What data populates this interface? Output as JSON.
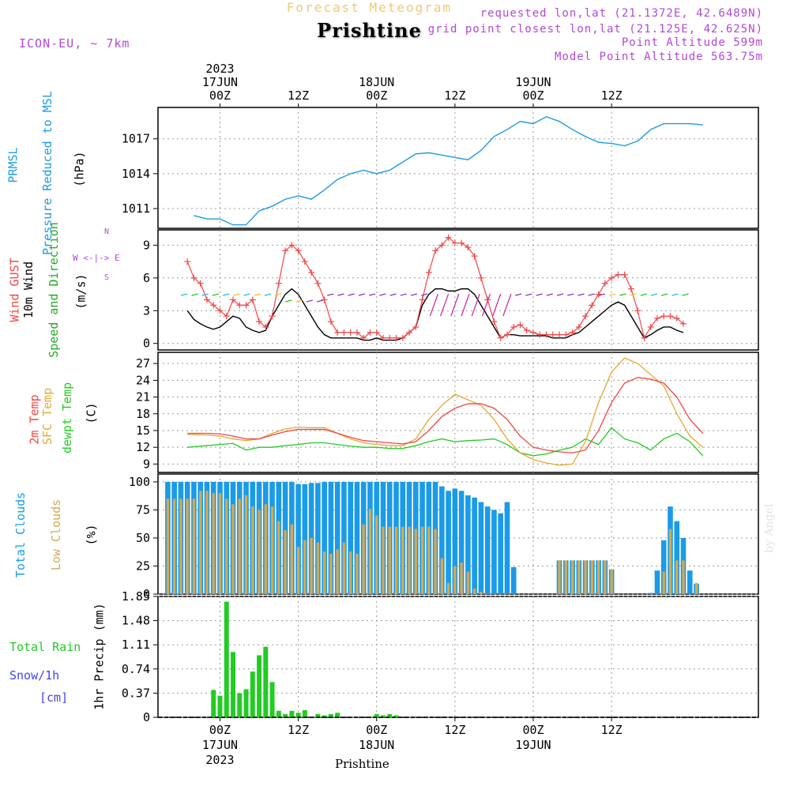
{
  "header": {
    "subtitle": "Forecast Meteogram",
    "location": "Prishtine",
    "model": "ICON-EU, ~ 7km",
    "requested": "requested lon,lat (21.1372E, 42.6489N)",
    "grid_point": "grid point closest lon,lat (21.125E, 42.625N)",
    "point_altitude": "Point Altitude 599m",
    "model_altitude": "Model Point Altitude 563.75m"
  },
  "footer": {
    "location": "Prishtine"
  },
  "watermark": "by Angel",
  "colors": {
    "pressure": "#1e9be0",
    "gust": "#f04646",
    "wind": "#000000",
    "temp": "#f04646",
    "sfc": "#e6a832",
    "dewpt": "#22cc22",
    "total_clouds": "#1a9be8",
    "low_clouds": "#d8a850",
    "rain": "#22cc22",
    "snow": "#4444ee",
    "purple": "#b347d9"
  },
  "axis_labels": {
    "top_year": "2023",
    "top_days": [
      "17JUN",
      "18JUN",
      "19JUN"
    ],
    "top_hours": [
      "00Z",
      "12Z",
      "00Z",
      "12Z",
      "00Z",
      "12Z"
    ],
    "bottom_hours": [
      "00Z",
      "12Z",
      "00Z",
      "12Z",
      "00Z",
      "12Z"
    ],
    "bottom_days": [
      "17JUN",
      "18JUN",
      "19JUN"
    ],
    "bottom_year": "2023"
  },
  "panel_labels": {
    "pressure": [
      "PRMSL",
      "Pressure Reduced to MSL",
      "(hPa)"
    ],
    "wind": [
      "Wind GUST",
      "10m Wind",
      "Speed and Direction",
      "(m/s)"
    ],
    "compass": [
      "N",
      "W <-|-> E",
      "S"
    ],
    "temp": [
      "2m Temp",
      "SFC Temp",
      "dewpt Temp",
      "(C)"
    ],
    "clouds": [
      "Total Clouds",
      "Low Clouds",
      "(%)"
    ],
    "precip": [
      "Total Rain",
      "Snow/1h",
      "[cm]",
      "1hr Precip (mm)"
    ]
  },
  "chart_data": [
    {
      "type": "line",
      "title": "PRMSL Pressure Reduced to MSL",
      "ylabel": "(hPa)",
      "ylim": [
        1009.3,
        1019.7
      ],
      "yticks": [
        "1011",
        "1014",
        "1017"
      ],
      "x_hours": [
        -4,
        -2,
        0,
        2,
        4,
        6,
        8,
        10,
        12,
        14,
        16,
        18,
        20,
        22,
        24,
        26,
        28,
        30,
        32,
        34,
        36,
        38,
        40,
        42,
        44,
        46,
        48,
        50,
        52,
        54,
        56,
        58,
        60,
        62,
        64,
        66,
        68,
        70,
        72,
        74
      ],
      "series": [
        {
          "name": "PRMSL",
          "values": [
            1010.4,
            1010.1,
            1010.1,
            1009.6,
            1009.6,
            1010.8,
            1011.2,
            1011.8,
            1012.1,
            1011.8,
            1012.6,
            1013.5,
            1014.0,
            1014.3,
            1014.0,
            1014.3,
            1015.0,
            1015.7,
            1015.8,
            1015.6,
            1015.4,
            1015.2,
            1016.0,
            1017.2,
            1017.8,
            1018.5,
            1018.3,
            1018.9,
            1018.5,
            1017.8,
            1017.2,
            1016.7,
            1016.6,
            1016.4,
            1016.8,
            1017.8,
            1018.3,
            1018.3,
            1018.3,
            1018.2
          ]
        }
      ]
    },
    {
      "type": "line",
      "title": "Wind GUST / 10m Wind Speed and Direction",
      "ylabel": "(m/s)",
      "ylim": [
        -0.6,
        10.4
      ],
      "yticks": [
        "0",
        "3",
        "6",
        "9"
      ],
      "x_hours": [
        -5,
        -4,
        -3,
        -2,
        -1,
        0,
        1,
        2,
        3,
        4,
        5,
        6,
        7,
        8,
        9,
        10,
        11,
        12,
        13,
        14,
        15,
        16,
        17,
        18,
        19,
        20,
        21,
        22,
        23,
        24,
        25,
        26,
        27,
        28,
        29,
        30,
        31,
        32,
        33,
        34,
        35,
        36,
        37,
        38,
        39,
        40,
        41,
        42,
        43,
        44,
        45,
        46,
        47,
        48,
        49,
        50,
        51,
        52,
        53,
        54,
        55,
        56,
        57,
        58,
        59,
        60,
        61,
        62,
        63,
        64,
        65,
        66,
        67,
        68,
        69,
        70,
        71
      ],
      "series": [
        {
          "name": "Wind GUST",
          "values": [
            7.5,
            6.0,
            5.5,
            4.0,
            3.5,
            3.0,
            2.5,
            4.0,
            3.5,
            3.5,
            4.0,
            2.0,
            1.5,
            2.5,
            5.5,
            8.5,
            9.0,
            8.5,
            7.5,
            6.5,
            5.5,
            4.0,
            2.0,
            1.0,
            1.0,
            1.0,
            1.0,
            0.5,
            1.0,
            1.0,
            0.5,
            0.5,
            0.5,
            0.5,
            1.0,
            1.5,
            4.0,
            6.5,
            8.5,
            9.0,
            9.7,
            9.2,
            9.2,
            8.8,
            8.0,
            6.0,
            4.0,
            2.0,
            0.5,
            0.8,
            1.5,
            1.7,
            1.2,
            1.0,
            0.8,
            0.8,
            0.8,
            0.8,
            0.8,
            1.0,
            1.5,
            2.5,
            3.5,
            4.5,
            5.5,
            6.0,
            6.3,
            6.3,
            5.0,
            3.0,
            0.5,
            1.5,
            2.3,
            2.5,
            2.5,
            2.3,
            1.8
          ]
        },
        {
          "name": "10m Wind",
          "values": [
            3.0,
            2.2,
            1.8,
            1.5,
            1.3,
            1.5,
            2.0,
            2.5,
            2.3,
            1.5,
            1.2,
            1.0,
            1.2,
            2.5,
            3.5,
            4.5,
            5.0,
            4.5,
            3.5,
            2.5,
            1.5,
            0.8,
            0.5,
            0.5,
            0.5,
            0.5,
            0.5,
            0.3,
            0.3,
            0.5,
            0.3,
            0.3,
            0.3,
            0.5,
            1.0,
            1.5,
            3.5,
            4.5,
            5.0,
            5.0,
            4.8,
            4.8,
            5.0,
            5.0,
            4.5,
            3.5,
            2.5,
            1.5,
            0.5,
            0.8,
            0.8,
            0.7,
            0.7,
            0.7,
            0.7,
            0.7,
            0.5,
            0.5,
            0.5,
            0.8,
            1.0,
            1.5,
            2.0,
            2.5,
            3.0,
            3.5,
            3.8,
            3.5,
            2.5,
            1.5,
            0.5,
            0.8,
            1.2,
            1.5,
            1.5,
            1.2,
            1.0
          ]
        }
      ]
    },
    {
      "type": "line",
      "title": "2m Temp / SFC Temp / dewpt Temp",
      "ylabel": "(C)",
      "ylim": [
        7.5,
        29
      ],
      "yticks": [
        "9",
        "12",
        "15",
        "18",
        "21",
        "24",
        "27"
      ],
      "x_hours": [
        -5,
        -2,
        0,
        2,
        4,
        6,
        8,
        10,
        12,
        14,
        16,
        18,
        20,
        22,
        24,
        26,
        28,
        30,
        32,
        34,
        36,
        38,
        40,
        42,
        44,
        46,
        48,
        50,
        52,
        54,
        56,
        58,
        60,
        62,
        64,
        66,
        68,
        70,
        72,
        74
      ],
      "series": [
        {
          "name": "2m Temp",
          "values": [
            14.5,
            14.5,
            14.4,
            14.0,
            13.5,
            13.5,
            14.2,
            14.8,
            15.2,
            15.2,
            15.2,
            14.5,
            13.8,
            13.2,
            13.0,
            12.8,
            12.6,
            13.0,
            15.0,
            17.5,
            19.0,
            19.8,
            19.8,
            19.0,
            17.0,
            14.0,
            12.0,
            11.5,
            11.2,
            11.0,
            11.5,
            15.0,
            20.0,
            23.5,
            24.5,
            24.2,
            23.5,
            21.0,
            17.0,
            14.5
          ]
        },
        {
          "name": "SFC Temp",
          "values": [
            14.3,
            14.2,
            14.0,
            13.5,
            13.2,
            13.5,
            14.5,
            15.3,
            15.6,
            15.5,
            15.5,
            14.5,
            13.5,
            12.8,
            12.5,
            12.3,
            12.3,
            13.5,
            17.0,
            19.5,
            21.5,
            20.5,
            19.5,
            17.0,
            13.5,
            11.0,
            9.8,
            9.2,
            8.8,
            9.0,
            13.0,
            20.0,
            25.5,
            28.0,
            27.0,
            25.0,
            23.0,
            18.0,
            14.0,
            12.0
          ]
        },
        {
          "name": "dewpt Temp",
          "values": [
            12.0,
            12.3,
            12.5,
            12.7,
            11.5,
            12.0,
            12.0,
            12.3,
            12.5,
            12.8,
            12.8,
            12.5,
            12.2,
            12.0,
            12.0,
            11.8,
            11.8,
            12.3,
            13.0,
            13.5,
            13.0,
            13.2,
            13.3,
            13.5,
            12.5,
            11.0,
            10.5,
            10.8,
            11.5,
            12.0,
            13.5,
            12.5,
            15.5,
            13.5,
            12.8,
            11.5,
            13.5,
            14.5,
            13.0,
            10.5
          ]
        }
      ]
    },
    {
      "type": "bar",
      "title": "Total Clouds / Low Clouds",
      "ylabel": "(%)",
      "ylim": [
        0,
        107
      ],
      "yticks": [
        "0",
        "25",
        "50",
        "75",
        "100"
      ],
      "x_hours": [
        -8,
        -7,
        -6,
        -5,
        -4,
        -3,
        -2,
        -1,
        0,
        1,
        2,
        3,
        4,
        5,
        6,
        7,
        8,
        9,
        10,
        11,
        12,
        13,
        14,
        15,
        16,
        17,
        18,
        19,
        20,
        21,
        22,
        23,
        24,
        25,
        26,
        27,
        28,
        29,
        30,
        31,
        32,
        33,
        34,
        35,
        36,
        37,
        38,
        39,
        40,
        41,
        42,
        43,
        44,
        45,
        46,
        47,
        48,
        49,
        50,
        51,
        52,
        53,
        54,
        55,
        56,
        57,
        58,
        59,
        60,
        61,
        62,
        63,
        64,
        65,
        66,
        67,
        68,
        69,
        70,
        71,
        72,
        73,
        74,
        75,
        76,
        77,
        78,
        79,
        80,
        81,
        82,
        83,
        84,
        85,
        86,
        87
      ],
      "series": [
        {
          "name": "Total Clouds",
          "values": [
            100,
            100,
            100,
            100,
            100,
            100,
            100,
            100,
            100,
            100,
            100,
            100,
            100,
            100,
            100,
            100,
            100,
            100,
            100,
            100,
            98,
            98,
            99,
            99,
            100,
            100,
            100,
            100,
            100,
            100,
            100,
            100,
            100,
            100,
            100,
            100,
            100,
            100,
            100,
            100,
            100,
            100,
            96,
            92,
            94,
            92,
            88,
            86,
            82,
            78,
            75,
            72,
            82,
            24,
            0,
            0,
            0,
            0,
            0,
            0,
            30,
            30,
            30,
            30,
            30,
            30,
            30,
            30,
            22,
            0,
            0,
            0,
            0,
            0,
            1,
            21,
            48,
            78,
            65,
            50,
            21,
            9,
            0,
            0,
            0,
            0,
            0,
            0,
            0,
            0,
            0,
            0,
            0,
            0,
            0,
            0
          ]
        },
        {
          "name": "Low Clouds",
          "values": [
            85,
            85,
            85,
            85,
            85,
            92,
            92,
            90,
            90,
            85,
            80,
            85,
            88,
            78,
            75,
            80,
            78,
            65,
            57,
            62,
            42,
            48,
            50,
            46,
            38,
            36,
            40,
            46,
            38,
            36,
            62,
            76,
            70,
            60,
            60,
            60,
            60,
            60,
            58,
            60,
            60,
            58,
            32,
            10,
            25,
            28,
            20,
            5,
            2,
            0,
            0,
            0,
            0,
            0,
            0,
            0,
            0,
            0,
            0,
            0,
            30,
            30,
            30,
            30,
            30,
            30,
            30,
            30,
            22,
            0,
            0,
            0,
            0,
            0,
            0,
            0,
            20,
            58,
            30,
            30,
            0,
            10,
            0,
            0,
            0,
            0,
            0,
            0,
            0,
            0,
            0,
            0,
            0,
            0,
            0,
            0
          ]
        }
      ]
    },
    {
      "type": "bar",
      "title": "1hr Precip",
      "ylabel": "1hr Precip (mm)",
      "ylim": [
        0,
        1.85
      ],
      "yticks": [
        "0",
        "0.37",
        "0.74",
        "1.11",
        "1.48",
        "1.85"
      ],
      "x_hours": [
        -1,
        0,
        1,
        2,
        3,
        4,
        5,
        6,
        7,
        8,
        9,
        10,
        11,
        12,
        13,
        14,
        15,
        16,
        17,
        18,
        19,
        20,
        21,
        22,
        23,
        24,
        25,
        26,
        27,
        28,
        29
      ],
      "series": [
        {
          "name": "Total Rain",
          "values": [
            0.42,
            0.33,
            1.77,
            1.0,
            0.37,
            0.43,
            0.7,
            0.95,
            1.08,
            0.54,
            0.1,
            0.05,
            0.1,
            0.07,
            0.11,
            0,
            0.05,
            0.03,
            0.05,
            0.07,
            0,
            0,
            0,
            0,
            0,
            0.05,
            0.03,
            0.05,
            0.03,
            0,
            0
          ]
        }
      ]
    }
  ]
}
